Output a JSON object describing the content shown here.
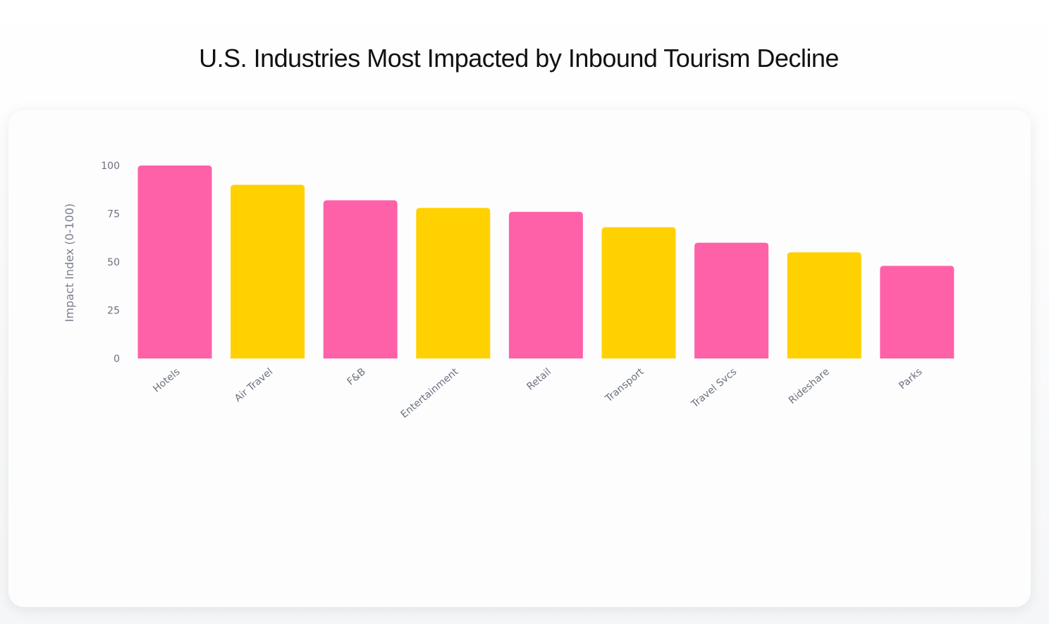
{
  "chart_data": {
    "type": "bar",
    "title": "U.S. Industries Most Impacted by Inbound Tourism Decline",
    "xlabel": "",
    "ylabel": "Impact Index (0-100)",
    "ylim": [
      0,
      100
    ],
    "yticks": [
      "0",
      "25",
      "50",
      "75",
      "100"
    ],
    "categories": [
      "Hotels",
      "Air Travel",
      "F&B",
      "Entertainment",
      "Retail",
      "Transport",
      "Travel Svcs",
      "Rideshare",
      "Parks"
    ],
    "values": [
      100,
      90,
      82,
      78,
      76,
      68,
      60,
      55,
      48
    ],
    "colors": [
      "#ff61a9",
      "#ffd100",
      "#ff61a9",
      "#ffd100",
      "#ff61a9",
      "#ffd100",
      "#ff61a9",
      "#ffd100",
      "#ff61a9"
    ],
    "grid": false,
    "legend": "none"
  }
}
